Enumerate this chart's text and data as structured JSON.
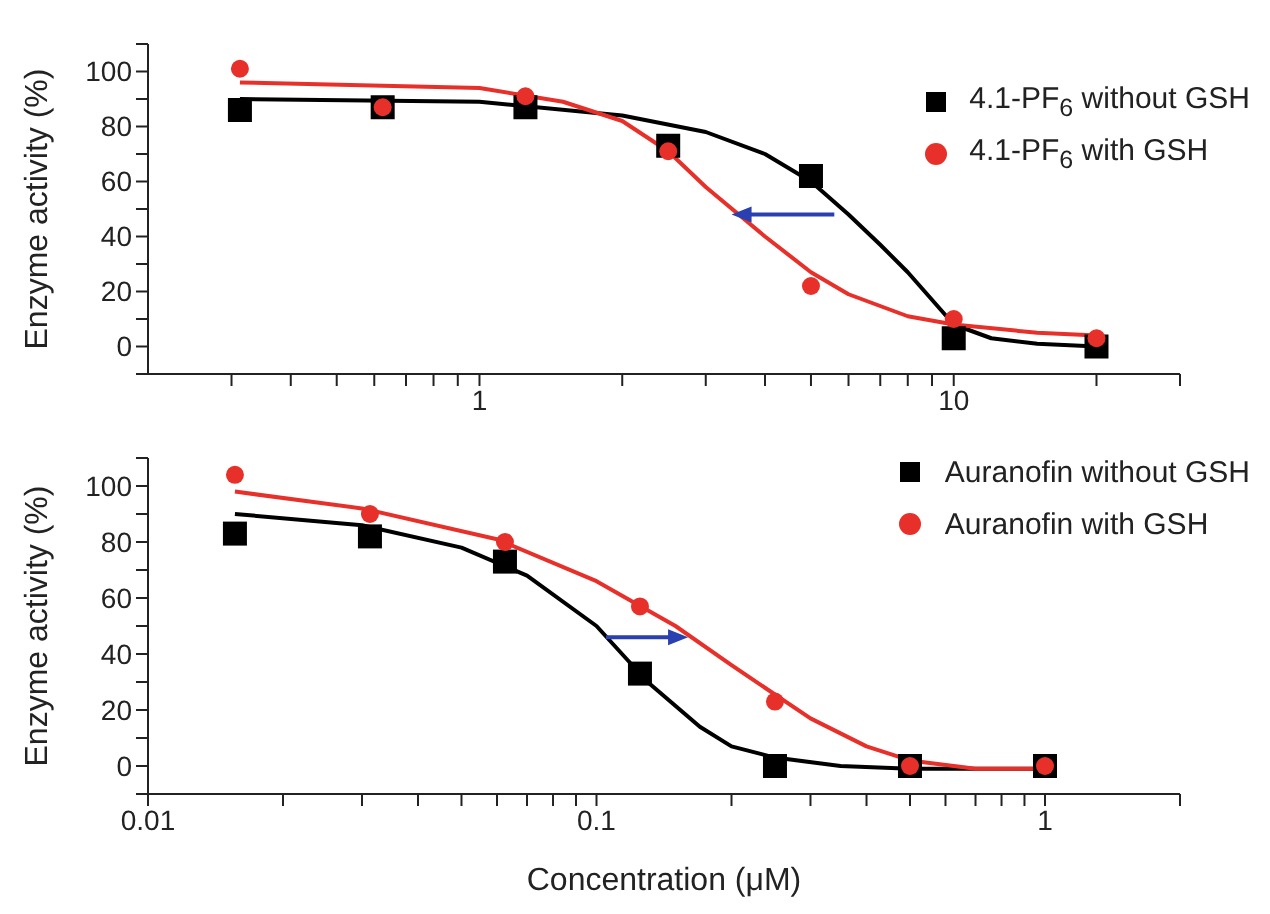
{
  "chart_data": [
    {
      "type": "scatter",
      "ylabel": "Enzyme activity (%)",
      "log": "x",
      "legend": "top right",
      "xlim": [
        0.2,
        30
      ],
      "xticks": [
        {
          "value": 0.3,
          "label": null
        },
        {
          "value": 0.4,
          "label": null
        },
        {
          "value": 0.5,
          "label": null
        },
        {
          "value": 0.6,
          "label": null
        },
        {
          "value": 0.7,
          "label": null
        },
        {
          "value": 0.8,
          "label": null
        },
        {
          "value": 0.9,
          "label": null
        },
        1,
        {
          "value": 2,
          "label": null
        },
        {
          "value": 3,
          "label": null
        },
        {
          "value": 4,
          "label": null
        },
        {
          "value": 5,
          "label": null
        },
        {
          "value": 6,
          "label": null
        },
        {
          "value": 7,
          "label": null
        },
        {
          "value": 8,
          "label": null
        },
        {
          "value": 9,
          "label": null
        },
        10,
        {
          "value": 20,
          "label": null
        },
        {
          "value": 30,
          "label": null
        }
      ],
      "ylim": [
        -10,
        110
      ],
      "yticks": [
        {
          "value": -10,
          "label": null
        },
        0,
        {
          "value": 10,
          "label": null
        },
        20,
        {
          "value": 30,
          "label": null
        },
        40,
        {
          "value": 50,
          "label": null
        },
        60,
        {
          "value": 70,
          "label": null
        },
        80,
        {
          "value": 90,
          "label": null
        },
        100,
        {
          "value": 110,
          "label": null
        }
      ],
      "x": [
        0.3125,
        0.625,
        1.25,
        2.5,
        5,
        10,
        20
      ],
      "series": [
        {
          "name": "4.1-PF$_{6}$ without GSH",
          "color": "#000000",
          "marker": "square",
          "values": [
            86,
            87,
            87,
            73,
            62,
            3,
            0
          ]
        },
        {
          "name": "4.1-PF$_{6}$ with GSH",
          "color": "#e8302a",
          "marker": "circle",
          "values": [
            101,
            87,
            91,
            71,
            22,
            10,
            3
          ]
        },
        {
          "type": "line",
          "color": "#000000",
          "marker": "none",
          "line_style": "solid",
          "x": [
            0.3125,
            1,
            2,
            3,
            4,
            5,
            6,
            7,
            8,
            10,
            12,
            15,
            20
          ],
          "values": [
            90,
            89,
            84,
            78,
            70,
            60,
            48,
            37,
            27,
            8,
            3,
            1,
            0
          ]
        },
        {
          "type": "line",
          "color": "#e8302a",
          "marker": "none",
          "line_style": "solid",
          "x": [
            0.3125,
            1,
            1.5,
            2,
            2.5,
            3,
            4,
            5,
            6,
            8,
            10,
            15,
            20
          ],
          "values": [
            96,
            94,
            89,
            82,
            71,
            58,
            40,
            27,
            19,
            11,
            8,
            5,
            4
          ]
        }
      ]
    },
    {
      "type": "scatter",
      "xlabel": "Concentration (μM)",
      "ylabel": "Enzyme activity (%)",
      "log": "x",
      "legend": "top right",
      "xlim": [
        0.01,
        2
      ],
      "xticks": [
        0.01,
        {
          "value": 0.02,
          "label": null
        },
        {
          "value": 0.03,
          "label": null
        },
        {
          "value": 0.04,
          "label": null
        },
        {
          "value": 0.05,
          "label": null
        },
        {
          "value": 0.06,
          "label": null
        },
        {
          "value": 0.07,
          "label": null
        },
        {
          "value": 0.08,
          "label": null
        },
        {
          "value": 0.09,
          "label": null
        },
        0.1,
        {
          "value": 0.2,
          "label": null
        },
        {
          "value": 0.3,
          "label": null
        },
        {
          "value": 0.4,
          "label": null
        },
        {
          "value": 0.5,
          "label": null
        },
        {
          "value": 0.6,
          "label": null
        },
        {
          "value": 0.7,
          "label": null
        },
        {
          "value": 0.8,
          "label": null
        },
        {
          "value": 0.9,
          "label": null
        },
        1,
        {
          "value": 2,
          "label": null
        }
      ],
      "ylim": [
        -10,
        110
      ],
      "yticks": [
        {
          "value": -10,
          "label": null
        },
        0,
        {
          "value": 10,
          "label": null
        },
        20,
        {
          "value": 30,
          "label": null
        },
        40,
        {
          "value": 50,
          "label": null
        },
        60,
        {
          "value": 70,
          "label": null
        },
        80,
        {
          "value": 90,
          "label": null
        },
        100,
        {
          "value": 110,
          "label": null
        }
      ],
      "x": [
        0.015625,
        0.03125,
        0.0625,
        0.125,
        0.25,
        0.5,
        1
      ],
      "series": [
        {
          "name": "Auranofin without GSH",
          "color": "#000000",
          "marker": "square",
          "values": [
            83,
            82,
            73,
            33,
            0,
            0,
            0
          ]
        },
        {
          "name": "Auranofin with GSH",
          "color": "#e8302a",
          "marker": "circle",
          "values": [
            104,
            90,
            80,
            57,
            23,
            0,
            0
          ]
        },
        {
          "type": "line",
          "color": "#000000",
          "marker": "none",
          "line_style": "solid",
          "x": [
            0.015625,
            0.03,
            0.05,
            0.07,
            0.1,
            0.13,
            0.17,
            0.2,
            0.25,
            0.35,
            0.5,
            1
          ],
          "values": [
            90,
            86,
            78,
            68,
            50,
            30,
            14,
            7,
            3,
            0,
            -1,
            -1
          ]
        },
        {
          "type": "line",
          "color": "#e8302a",
          "marker": "none",
          "line_style": "solid",
          "x": [
            0.015625,
            0.03,
            0.06,
            0.1,
            0.15,
            0.2,
            0.3,
            0.4,
            0.5,
            0.7,
            1
          ],
          "values": [
            98,
            92,
            81,
            66,
            50,
            36,
            17,
            7,
            2,
            -1,
            -1
          ]
        }
      ]
    }
  ]
}
